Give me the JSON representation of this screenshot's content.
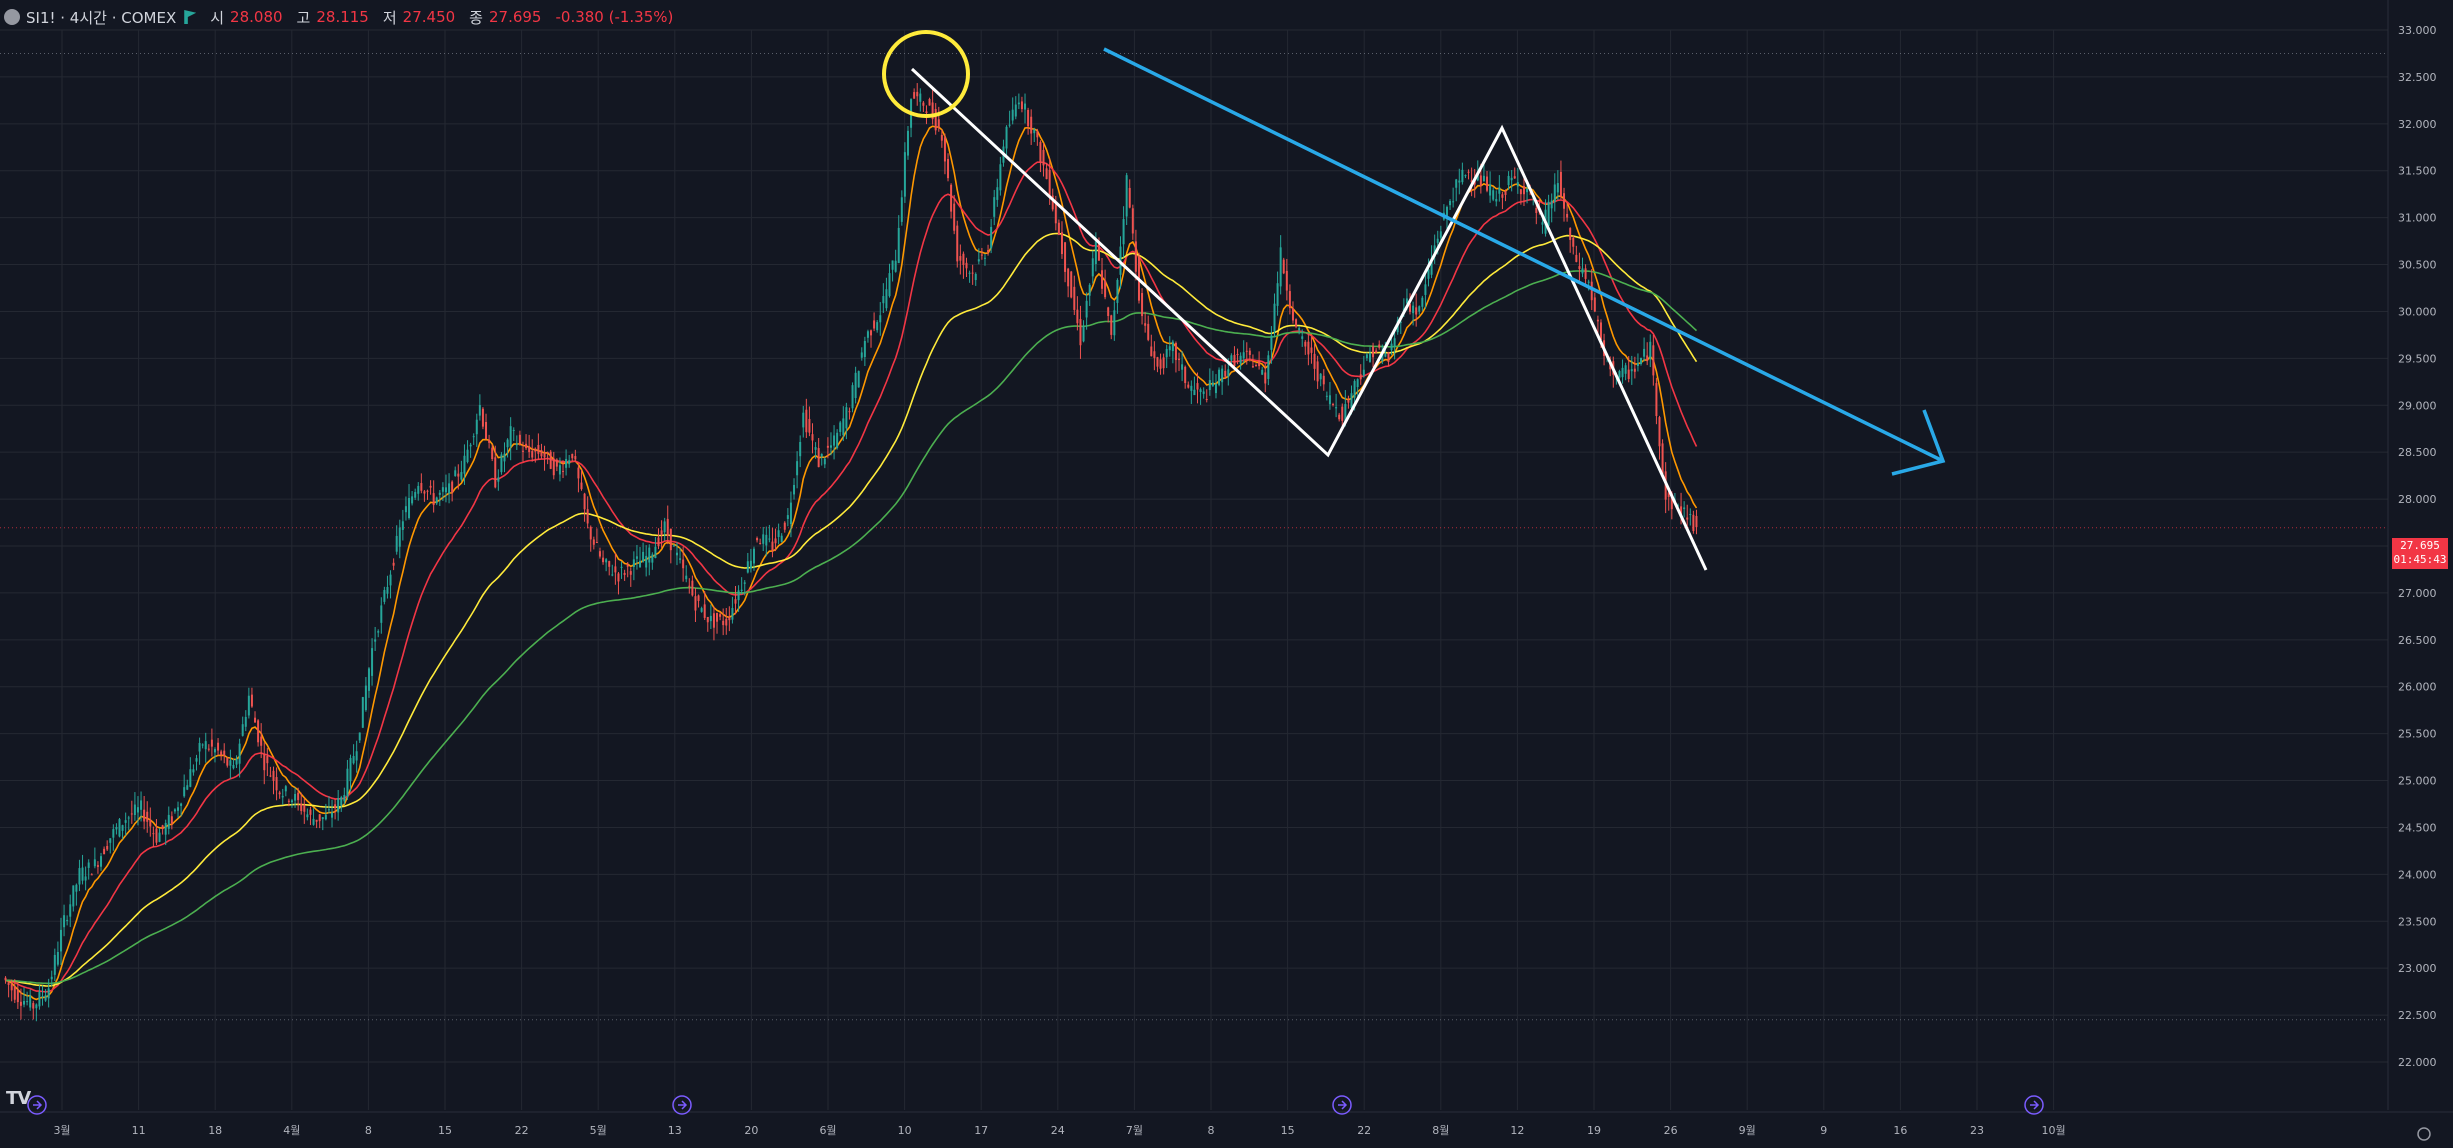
{
  "header": {
    "symbol": "SI1! · 4시간 · COMEX",
    "open_label": "시",
    "open_value": "28.080",
    "high_label": "고",
    "high_value": "28.115",
    "low_label": "저",
    "low_value": "27.450",
    "close_label": "종",
    "close_value": "27.695",
    "change": "-0.380 (-1.35%)"
  },
  "price_badge": {
    "price": "27.695",
    "countdown": "01:45:43"
  },
  "logo_text": "TV",
  "colors": {
    "background": "#131722",
    "grid": "#242832",
    "candle_up": "#26a69a",
    "candle_down": "#ef5350",
    "ma_orange": "#ff9800",
    "ma_red": "#f23645",
    "ma_yellow": "#ffeb3b",
    "ma_green": "#4caf50",
    "trend_blue": "#29a9e8",
    "zigzag": "#ffffff",
    "circle": "#ffeb3b"
  },
  "chart_data": {
    "type": "candlestick",
    "price_axis": {
      "ticks": [
        "33.000",
        "32.500",
        "32.000",
        "31.500",
        "31.000",
        "30.500",
        "30.000",
        "29.500",
        "29.000",
        "28.500",
        "28.000",
        "27.500",
        "27.000",
        "26.500",
        "26.000",
        "25.500",
        "25.000",
        "24.500",
        "24.000",
        "23.500",
        "23.000",
        "22.500",
        "22.000"
      ],
      "ylim": [
        22.0,
        33.0
      ]
    },
    "time_axis": {
      "ticks": [
        "3월",
        "11",
        "18",
        "4월",
        "8",
        "15",
        "22",
        "5월",
        "13",
        "20",
        "6월",
        "10",
        "17",
        "24",
        "7월",
        "8",
        "15",
        "22",
        "8월",
        "12",
        "19",
        "26",
        "9월",
        "9",
        "16",
        "23",
        "10월"
      ]
    },
    "price_path": [
      [
        0,
        22.9
      ],
      [
        1,
        22.7
      ],
      [
        2,
        22.6
      ],
      [
        3,
        22.8
      ],
      [
        4,
        23.5
      ],
      [
        5,
        24.0
      ],
      [
        6,
        24.1
      ],
      [
        7,
        24.4
      ],
      [
        8,
        24.6
      ],
      [
        9,
        24.7
      ],
      [
        10,
        24.4
      ],
      [
        11,
        24.6
      ],
      [
        12,
        25.0
      ],
      [
        13,
        25.4
      ],
      [
        14,
        25.3
      ],
      [
        15,
        25.1
      ],
      [
        16,
        25.9
      ],
      [
        17,
        25.2
      ],
      [
        18,
        24.9
      ],
      [
        19,
        24.8
      ],
      [
        20,
        24.6
      ],
      [
        21,
        24.6
      ],
      [
        22,
        24.8
      ],
      [
        23,
        25.4
      ],
      [
        24,
        26.4
      ],
      [
        25,
        27.1
      ],
      [
        26,
        27.8
      ],
      [
        27,
        28.2
      ],
      [
        28,
        28.0
      ],
      [
        29,
        28.1
      ],
      [
        30,
        28.4
      ],
      [
        31,
        29.0
      ],
      [
        32,
        28.2
      ],
      [
        33,
        28.7
      ],
      [
        34,
        28.5
      ],
      [
        35,
        28.5
      ],
      [
        36,
        28.3
      ],
      [
        37,
        28.5
      ],
      [
        38,
        27.7
      ],
      [
        39,
        27.3
      ],
      [
        40,
        27.2
      ],
      [
        41,
        27.3
      ],
      [
        42,
        27.4
      ],
      [
        43,
        27.7
      ],
      [
        44,
        27.3
      ],
      [
        45,
        26.9
      ],
      [
        46,
        26.7
      ],
      [
        47,
        26.7
      ],
      [
        48,
        27.1
      ],
      [
        49,
        27.6
      ],
      [
        50,
        27.5
      ],
      [
        51,
        27.8
      ],
      [
        52,
        28.9
      ],
      [
        53,
        28.4
      ],
      [
        54,
        28.6
      ],
      [
        55,
        29.0
      ],
      [
        56,
        29.7
      ],
      [
        57,
        30.0
      ],
      [
        58,
        30.6
      ],
      [
        59,
        32.3
      ],
      [
        60,
        32.2
      ],
      [
        61,
        31.9
      ],
      [
        62,
        30.6
      ],
      [
        63,
        30.4
      ],
      [
        64,
        30.7
      ],
      [
        65,
        31.8
      ],
      [
        66,
        32.3
      ],
      [
        67,
        31.9
      ],
      [
        68,
        31.3
      ],
      [
        69,
        30.5
      ],
      [
        70,
        29.7
      ],
      [
        71,
        30.7
      ],
      [
        72,
        29.7
      ],
      [
        73,
        31.4
      ],
      [
        74,
        29.9
      ],
      [
        75,
        29.4
      ],
      [
        76,
        29.6
      ],
      [
        77,
        29.2
      ],
      [
        78,
        29.1
      ],
      [
        79,
        29.3
      ],
      [
        80,
        29.5
      ],
      [
        81,
        29.5
      ],
      [
        82,
        29.3
      ],
      [
        83,
        30.6
      ],
      [
        84,
        29.8
      ],
      [
        85,
        29.5
      ],
      [
        86,
        29.1
      ],
      [
        87,
        28.9
      ],
      [
        88,
        29.3
      ],
      [
        89,
        29.6
      ],
      [
        90,
        29.5
      ],
      [
        91,
        30.1
      ],
      [
        92,
        30.0
      ],
      [
        93,
        30.7
      ],
      [
        94,
        31.2
      ],
      [
        95,
        31.5
      ],
      [
        96,
        31.4
      ],
      [
        97,
        31.2
      ],
      [
        98,
        31.4
      ],
      [
        99,
        31.3
      ],
      [
        100,
        30.9
      ],
      [
        101,
        31.4
      ],
      [
        102,
        30.6
      ],
      [
        103,
        30.3
      ],
      [
        104,
        29.5
      ],
      [
        105,
        29.3
      ],
      [
        106,
        29.4
      ],
      [
        107,
        29.6
      ],
      [
        108,
        28.0
      ],
      [
        109,
        27.9
      ],
      [
        110,
        27.7
      ]
    ],
    "overlays": [
      "moving averages (4)",
      "trend line",
      "zigzag pattern",
      "highlight circle",
      "projection arrow"
    ]
  }
}
